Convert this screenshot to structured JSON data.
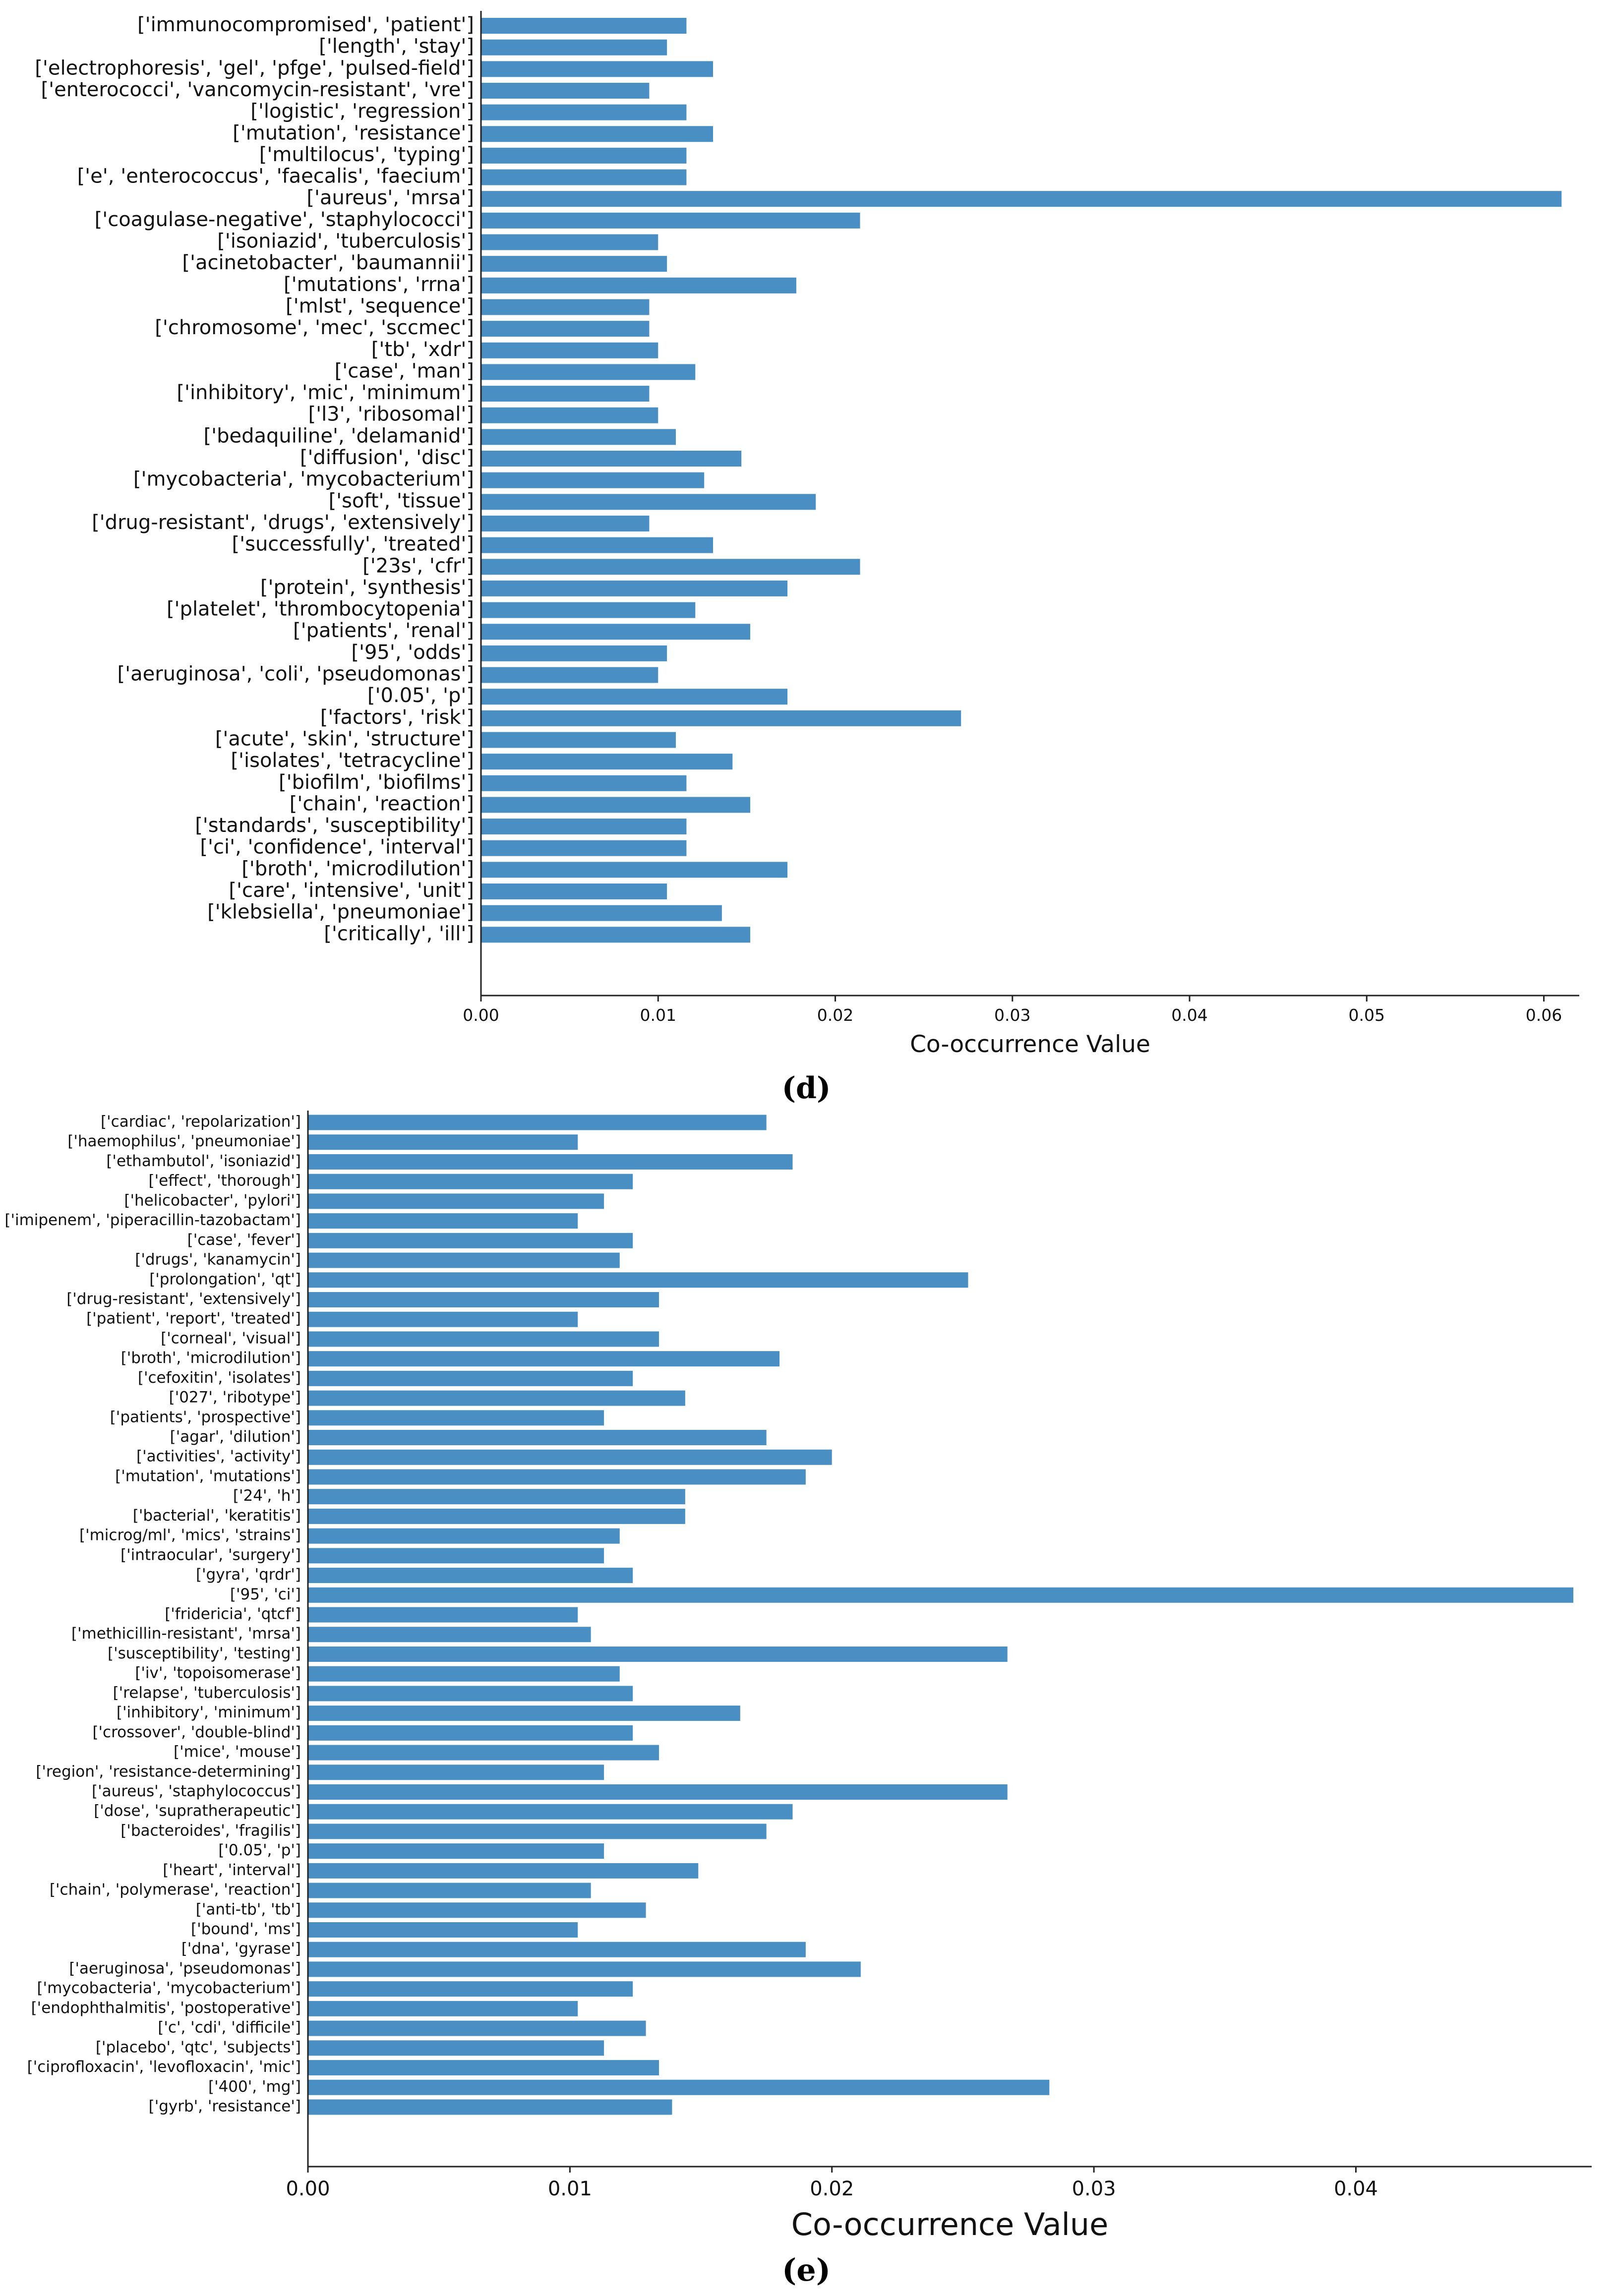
{
  "chart_data": [
    {
      "type": "bar",
      "orientation": "horizontal",
      "panel_label": "d",
      "xlabel": "Co-occurrence Value",
      "xlim": [
        0,
        0.062
      ],
      "xticks": [
        0.0,
        0.01,
        0.02,
        0.03,
        0.04,
        0.05,
        0.06
      ],
      "xtick_labels": [
        "0.00",
        "0.01",
        "0.02",
        "0.03",
        "0.04",
        "0.05",
        "0.06"
      ],
      "bar_color": "#4A8FC4",
      "categories": [
        "['immunocompromised', 'patient']",
        "['length', 'stay']",
        "['electrophoresis', 'gel', 'pfge', 'pulsed-field']",
        "['enterococci', 'vancomycin-resistant', 'vre']",
        "['logistic', 'regression']",
        "['mutation', 'resistance']",
        "['multilocus', 'typing']",
        "['e', 'enterococcus', 'faecalis', 'faecium']",
        "['aureus', 'mrsa']",
        "['coagulase-negative', 'staphylococci']",
        "['isoniazid', 'tuberculosis']",
        "['acinetobacter', 'baumannii']",
        "['mutations', 'rrna']",
        "['mlst', 'sequence']",
        "['chromosome', 'mec', 'sccmec']",
        "['tb', 'xdr']",
        "['case', 'man']",
        "['inhibitory', 'mic', 'minimum']",
        "['l3', 'ribosomal']",
        "['bedaquiline', 'delamanid']",
        "['diffusion', 'disc']",
        "['mycobacteria', 'mycobacterium']",
        "['soft', 'tissue']",
        "['drug-resistant', 'drugs', 'extensively']",
        "['successfully', 'treated']",
        "['23s', 'cfr']",
        "['protein', 'synthesis']",
        "['platelet', 'thrombocytopenia']",
        "['patients', 'renal']",
        "['95', 'odds']",
        "['aeruginosa', 'coli', 'pseudomonas']",
        "['0.05', 'p']",
        "['factors', 'risk']",
        "['acute', 'skin', 'structure']",
        "['isolates', 'tetracycline']",
        "['biofilm', 'biofilms']",
        "['chain', 'reaction']",
        "['standards', 'susceptibility']",
        "['ci', 'confidence', 'interval']",
        "['broth', 'microdilution']",
        "['care', 'intensive', 'unit']",
        "['klebsiella', 'pneumoniae']",
        "['critically', 'ill']"
      ],
      "values": [
        0.0116,
        0.0105,
        0.0131,
        0.0095,
        0.0116,
        0.0131,
        0.0116,
        0.0116,
        0.061,
        0.0214,
        0.01,
        0.0105,
        0.0178,
        0.0095,
        0.0095,
        0.01,
        0.0121,
        0.0095,
        0.01,
        0.011,
        0.0147,
        0.0126,
        0.0189,
        0.0095,
        0.0131,
        0.0214,
        0.0173,
        0.0121,
        0.0152,
        0.0105,
        0.01,
        0.0173,
        0.0271,
        0.011,
        0.0142,
        0.0116,
        0.0152,
        0.0116,
        0.0116,
        0.0173,
        0.0105,
        0.0136,
        0.0152
      ]
    },
    {
      "type": "bar",
      "orientation": "horizontal",
      "panel_label": "e",
      "xlabel": "Co-occurrence Value",
      "xlim": [
        0,
        0.049
      ],
      "xticks": [
        0.0,
        0.01,
        0.02,
        0.03,
        0.04
      ],
      "xtick_labels": [
        "0.00",
        "0.01",
        "0.02",
        "0.03",
        "0.04"
      ],
      "bar_color": "#4A8FC4",
      "categories": [
        "['cardiac', 'repolarization']",
        "['haemophilus', 'pneumoniae']",
        "['ethambutol', 'isoniazid']",
        "['effect', 'thorough']",
        "['helicobacter', 'pylori']",
        "['imipenem', 'piperacillin-tazobactam']",
        "['case', 'fever']",
        "['drugs', 'kanamycin']",
        "['prolongation', 'qt']",
        "['drug-resistant', 'extensively']",
        "['patient', 'report', 'treated']",
        "['corneal', 'visual']",
        "['broth', 'microdilution']",
        "['cefoxitin', 'isolates']",
        "['027', 'ribotype']",
        "['patients', 'prospective']",
        "['agar', 'dilution']",
        "['activities', 'activity']",
        "['mutation', 'mutations']",
        "['24', 'h']",
        "['bacterial', 'keratitis']",
        "['microg/ml', 'mics', 'strains']",
        "['intraocular', 'surgery']",
        "['gyra', 'qrdr']",
        "['95', 'ci']",
        "['fridericia', 'qtcf']",
        "['methicillin-resistant', 'mrsa']",
        "['susceptibility', 'testing']",
        "['iv', 'topoisomerase']",
        "['relapse', 'tuberculosis']",
        "['inhibitory', 'minimum']",
        "['crossover', 'double-blind']",
        "['mice', 'mouse']",
        "['region', 'resistance-determining']",
        "['aureus', 'staphylococcus']",
        "['dose', 'supratherapeutic']",
        "['bacteroides', 'fragilis']",
        "['0.05', 'p']",
        "['heart', 'interval']",
        "['chain', 'polymerase', 'reaction']",
        "['anti-tb', 'tb']",
        "['bound', 'ms']",
        "['dna', 'gyrase']",
        "['aeruginosa', 'pseudomonas']",
        "['mycobacteria', 'mycobacterium']",
        "['endophthalmitis', 'postoperative']",
        "['c', 'cdi', 'difficile']",
        "['placebo', 'qtc', 'subjects']",
        "['ciprofloxacin', 'levofloxacin', 'mic']",
        "['400', 'mg']",
        "['gyrb', 'resistance']"
      ],
      "values": [
        0.0175,
        0.0103,
        0.0185,
        0.0124,
        0.0113,
        0.0103,
        0.0124,
        0.0119,
        0.0252,
        0.0134,
        0.0103,
        0.0134,
        0.018,
        0.0124,
        0.0144,
        0.0113,
        0.0175,
        0.02,
        0.019,
        0.0144,
        0.0144,
        0.0119,
        0.0113,
        0.0124,
        0.0483,
        0.0103,
        0.0108,
        0.0267,
        0.0119,
        0.0124,
        0.0165,
        0.0124,
        0.0134,
        0.0113,
        0.0267,
        0.0185,
        0.0175,
        0.0113,
        0.0149,
        0.0108,
        0.0129,
        0.0103,
        0.019,
        0.0211,
        0.0124,
        0.0103,
        0.0129,
        0.0113,
        0.0134,
        0.0283,
        0.0139
      ]
    }
  ]
}
